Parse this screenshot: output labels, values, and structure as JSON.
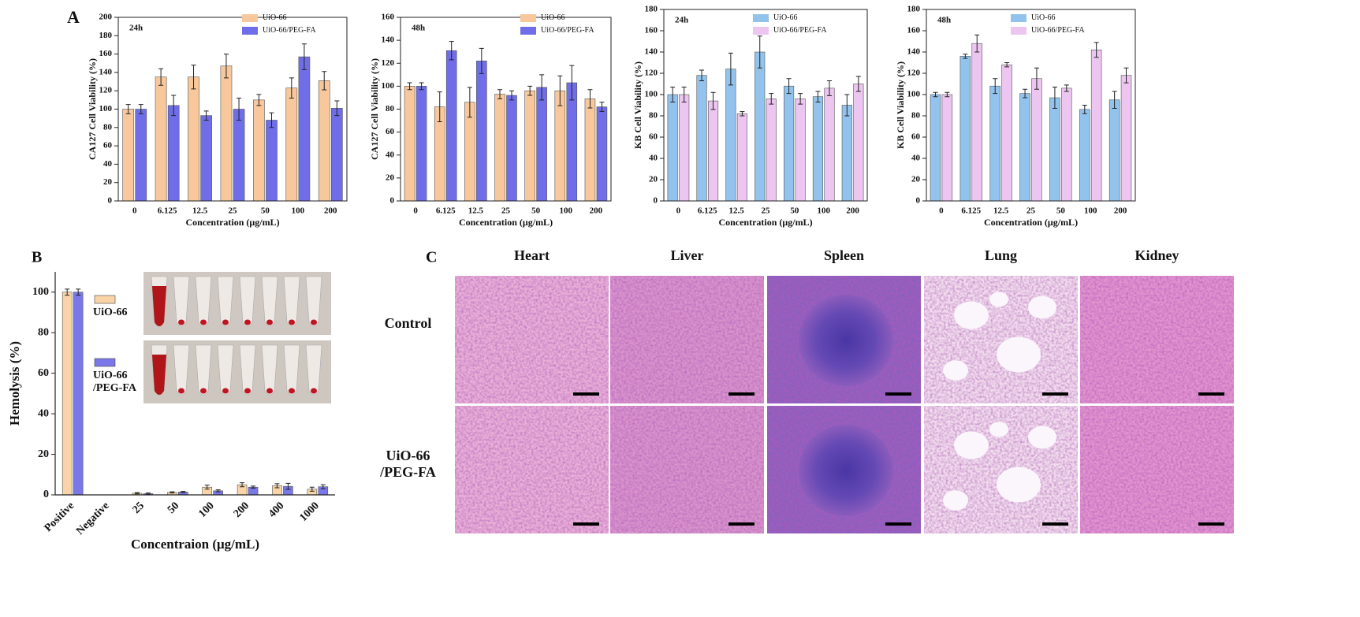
{
  "chart_data": [
    {
      "type": "bar",
      "annotation": "24h",
      "y_label": "CA127 Cell Viability (%)",
      "x_label": "Concentration (μg/mL)",
      "categories": [
        "0",
        "6.125",
        "12.5",
        "25",
        "50",
        "100",
        "200"
      ],
      "series": [
        {
          "name": "UiO-66",
          "color": "#f8c89c",
          "values": [
            100,
            135,
            135,
            147,
            110,
            123,
            131
          ],
          "errors": [
            5,
            9,
            13,
            13,
            6,
            11,
            10
          ]
        },
        {
          "name": "UiO-66/PEG-FA",
          "color": "#6f6ee8",
          "values": [
            100,
            104,
            93,
            100,
            88,
            157,
            101
          ],
          "errors": [
            5,
            11,
            5,
            12,
            8,
            14,
            8
          ]
        }
      ],
      "ylim": [
        0,
        200
      ],
      "yticks": [
        0,
        20,
        40,
        60,
        80,
        100,
        120,
        140,
        160,
        180,
        200
      ]
    },
    {
      "type": "bar",
      "annotation": "48h",
      "y_label": "CA127 Cell Viability (%)",
      "x_label": "Concentration (μg/mL)",
      "categories": [
        "0",
        "6.125",
        "12.5",
        "25",
        "50",
        "100",
        "200"
      ],
      "series": [
        {
          "name": "UiO-66",
          "color": "#f8c89c",
          "values": [
            100,
            82,
            86,
            93,
            96,
            96,
            89
          ],
          "errors": [
            3,
            13,
            13,
            4,
            4,
            13,
            8
          ]
        },
        {
          "name": "UiO-66/PEG-FA",
          "color": "#6f6ee8",
          "values": [
            100,
            131,
            122,
            92,
            99,
            103,
            82
          ],
          "errors": [
            3,
            8,
            11,
            4,
            11,
            15,
            4
          ]
        }
      ],
      "ylim": [
        0,
        160
      ],
      "yticks": [
        0,
        20,
        40,
        60,
        80,
        100,
        120,
        140,
        160
      ]
    },
    {
      "type": "bar",
      "annotation": "24h",
      "y_label": "KB Cell Viability (%)",
      "x_label": "Concentration (μg/mL)",
      "categories": [
        "0",
        "6.125",
        "12.5",
        "25",
        "50",
        "100",
        "200"
      ],
      "series": [
        {
          "name": "UiO-66",
          "color": "#92c3ec",
          "values": [
            100,
            118,
            124,
            140,
            108,
            98,
            90
          ],
          "errors": [
            7,
            5,
            15,
            15,
            7,
            5,
            10
          ]
        },
        {
          "name": "UiO-66/PEG-FA",
          "color": "#ecc6f0",
          "values": [
            100,
            94,
            82,
            96,
            96,
            106,
            110
          ],
          "errors": [
            7,
            8,
            2,
            5,
            5,
            7,
            7
          ]
        }
      ],
      "ylim": [
        0,
        180
      ],
      "yticks": [
        0,
        20,
        40,
        60,
        80,
        100,
        120,
        140,
        160,
        180
      ]
    },
    {
      "type": "bar",
      "annotation": "48h",
      "y_label": "KB Cell Viability (%)",
      "x_label": "Concentration (μg/mL)",
      "categories": [
        "0",
        "6.125",
        "12.5",
        "25",
        "50",
        "100",
        "200"
      ],
      "series": [
        {
          "name": "UiO-66",
          "color": "#92c3ec",
          "values": [
            100,
            136,
            108,
            101,
            97,
            86,
            95
          ],
          "errors": [
            2,
            2,
            7,
            4,
            10,
            4,
            8
          ]
        },
        {
          "name": "UiO-66/PEG-FA",
          "color": "#ecc6f0",
          "values": [
            100,
            148,
            128,
            115,
            106,
            142,
            118
          ],
          "errors": [
            2,
            8,
            2,
            10,
            3,
            7,
            7
          ]
        }
      ],
      "ylim": [
        0,
        180
      ],
      "yticks": [
        0,
        20,
        40,
        60,
        80,
        100,
        120,
        140,
        160,
        180
      ]
    },
    {
      "type": "bar",
      "y_label": "Hemolysis (%)",
      "x_label": "Concentraion (μg/mL)",
      "categories": [
        "Positive",
        "Negative",
        "25",
        "50",
        "100",
        "200",
        "400",
        "1000"
      ],
      "series": [
        {
          "name": "UiO-66",
          "color": "#f8d4a8",
          "values": [
            100,
            0,
            0.8,
            1.2,
            3.8,
            5,
            4.5,
            2.8
          ],
          "errors": [
            1.5,
            0,
            0.3,
            0.3,
            1,
            1,
            1,
            1
          ]
        },
        {
          "name": "UiO-66 /PEG-FA",
          "color": "#7a78e8",
          "values": [
            100,
            0,
            0.6,
            1.4,
            2,
            3.8,
            4.2,
            4
          ],
          "errors": [
            1.5,
            0,
            0.3,
            0.3,
            0.5,
            0.5,
            1.5,
            1
          ]
        }
      ],
      "ylim": [
        0,
        110
      ],
      "yticks": [
        0,
        20,
        40,
        60,
        80,
        100
      ]
    }
  ],
  "panel_labels": {
    "a": "A",
    "b": "B",
    "c": "C"
  },
  "histology": {
    "columns": [
      "Heart",
      "Liver",
      "Spleen",
      "Lung",
      "Kidney"
    ],
    "rows": [
      "Control",
      "UiO-66 /PEG-FA"
    ]
  }
}
